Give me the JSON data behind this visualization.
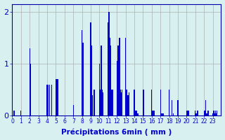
{
  "values": [
    0.05,
    0.0,
    0.1,
    0.0,
    0.0,
    0.0,
    0.0,
    0.0,
    0.0,
    0.0,
    0.1,
    0.0,
    0.0,
    0.0,
    0.0,
    0.0,
    0.0,
    0.0,
    0.0,
    0.0,
    1.3,
    1.0,
    0.0,
    0.0,
    0.0,
    0.0,
    0.0,
    0.0,
    0.0,
    0.0,
    0.0,
    0.0,
    0.0,
    0.0,
    0.0,
    0.0,
    0.0,
    0.0,
    0.0,
    0.0,
    0.6,
    0.6,
    0.0,
    0.6,
    0.0,
    0.6,
    0.0,
    0.0,
    0.0,
    0.0,
    0.7,
    0.7,
    0.7,
    0.0,
    0.0,
    0.0,
    0.0,
    0.0,
    0.0,
    0.0,
    0.0,
    0.0,
    0.0,
    0.0,
    0.0,
    0.0,
    0.0,
    0.0,
    0.0,
    0.0,
    0.2,
    0.0,
    0.0,
    0.0,
    0.0,
    0.0,
    0.0,
    0.0,
    0.0,
    0.0,
    1.65,
    1.4,
    0.0,
    0.0,
    0.0,
    0.0,
    0.0,
    0.0,
    0.0,
    0.0,
    1.8,
    1.35,
    0.4,
    0.0,
    0.5,
    0.0,
    0.0,
    0.0,
    0.0,
    0.0,
    1.0,
    0.5,
    1.35,
    0.5,
    0.45,
    0.0,
    0.0,
    0.0,
    0.0,
    0.0,
    1.8,
    2.0,
    1.5,
    1.35,
    0.5,
    0.5,
    0.0,
    0.0,
    0.0,
    0.0,
    1.05,
    1.35,
    1.35,
    1.5,
    0.5,
    0.45,
    0.5,
    0.0,
    0.0,
    0.0,
    1.5,
    0.5,
    0.4,
    0.4,
    0.45,
    0.0,
    0.0,
    0.0,
    0.0,
    0.0,
    0.5,
    0.1,
    0.1,
    0.1,
    0.05,
    0.0,
    0.0,
    0.0,
    0.0,
    0.0,
    0.5,
    0.5,
    0.0,
    0.0,
    0.0,
    0.0,
    0.0,
    0.0,
    0.0,
    0.0,
    0.5,
    0.1,
    0.1,
    0.1,
    0.0,
    0.0,
    0.0,
    0.0,
    0.0,
    0.0,
    0.5,
    0.05,
    0.05,
    0.05,
    0.0,
    0.0,
    0.0,
    0.0,
    0.0,
    0.0,
    0.5,
    0.0,
    0.0,
    0.3,
    0.0,
    0.05,
    0.0,
    0.0,
    0.0,
    0.0,
    0.3,
    0.0,
    0.0,
    0.0,
    0.0,
    0.0,
    0.0,
    0.0,
    0.0,
    0.0,
    0.1,
    0.1,
    0.1,
    0.0,
    0.0,
    0.0,
    0.0,
    0.0,
    0.0,
    0.0,
    0.1,
    0.05,
    0.1,
    0.1,
    0.0,
    0.0,
    0.0,
    0.0,
    0.0,
    0.0,
    0.1,
    0.1,
    0.3,
    0.05,
    0.1,
    0.1,
    0.0,
    0.0,
    0.0,
    0.0,
    0.05,
    0.1,
    0.05,
    0.1,
    0.05,
    0.1,
    0.0,
    0.0,
    0.0,
    0.0
  ],
  "xtick_labels": [
    "0",
    "1",
    "2",
    "3",
    "4",
    "5",
    "6",
    "7",
    "8",
    "9",
    "10",
    "11",
    "12",
    "13",
    "14",
    "15",
    "16",
    "17",
    "18",
    "19",
    "20",
    "21",
    "22",
    "23"
  ],
  "xlabel": "Précipitations 6min ( mm )",
  "ytick_labels": [
    "0",
    "1",
    "2"
  ],
  "ytick_values": [
    0,
    1,
    2
  ],
  "ylim": [
    0,
    2.15
  ],
  "bar_color": "#0000cc",
  "bg_color": "#d8f0f0",
  "grid_color": "#b0b0b0",
  "axis_color": "#0000aa",
  "tick_label_color": "#0000cc",
  "xlabel_color": "#0000cc",
  "bars_per_hour": 10,
  "hours": 24
}
